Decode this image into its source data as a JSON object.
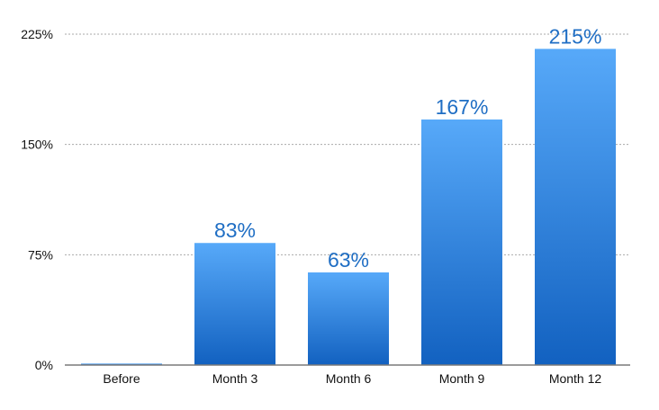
{
  "chart_data": {
    "type": "bar",
    "title": "",
    "xlabel": "",
    "ylabel": "",
    "categories": [
      "Before",
      "Month 3",
      "Month 6",
      "Month 9",
      "Month 12"
    ],
    "values": [
      1,
      83,
      63,
      167,
      215
    ],
    "data_labels": [
      "",
      "83%",
      "63%",
      "167%",
      "215%"
    ],
    "y_ticks": [
      {
        "value": 0,
        "label": "0%"
      },
      {
        "value": 75,
        "label": "75%"
      },
      {
        "value": 150,
        "label": "150%"
      },
      {
        "value": 225,
        "label": "225%"
      }
    ],
    "ylim": [
      0,
      225
    ],
    "grid": "horizontal dotted",
    "legend": "none",
    "colors": {
      "bar_top": "#57a9f9",
      "bar_bottom": "#1261c0",
      "label": "#1f6ec4",
      "grid": "#a9a9a9",
      "axis": "#7a7a7a",
      "text": "#111111"
    }
  }
}
